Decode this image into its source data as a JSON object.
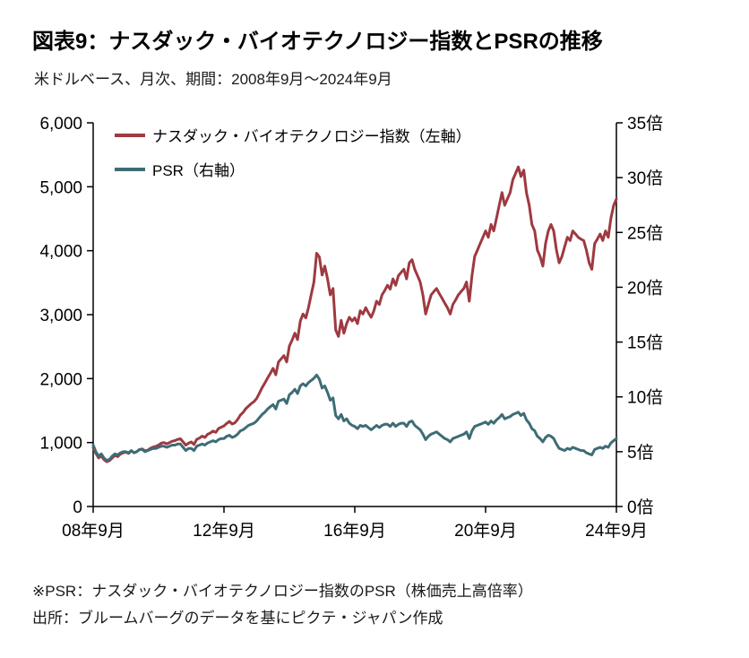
{
  "page": {
    "title": "図表9：ナスダック・バイオテクノロジー指数とPSRの推移",
    "subtitle": "米ドルベース、月次、期間：2008年9月～2024年9月",
    "footnotes": [
      "※PSR：ナスダック・バイオテクノロジー指数のPSR（株価売上高倍率）",
      "出所：ブルームバーグのデータを基にピクテ・ジャパン作成"
    ]
  },
  "chart_data": {
    "type": "line",
    "title": "図表9：ナスダック・バイオテクノロジー指数とPSRの推移",
    "subtitle": "米ドルベース、月次、期間：2008年9月～2024年9月",
    "x_axis": {
      "unit": "month",
      "range_note": "monthly, 2008-09 through 2024-09, 193 points",
      "ticks": [
        {
          "index": 0,
          "label": "08年9月"
        },
        {
          "index": 48,
          "label": "12年9月"
        },
        {
          "index": 96,
          "label": "16年9月"
        },
        {
          "index": 144,
          "label": "20年9月"
        },
        {
          "index": 192,
          "label": "24年9月"
        }
      ]
    },
    "left_axis": {
      "min": 0,
      "max": 6000,
      "tick_values": [
        0,
        1000,
        2000,
        3000,
        4000,
        5000,
        6000
      ],
      "tick_labels": [
        "0",
        "1,000",
        "2,000",
        "3,000",
        "4,000",
        "5,000",
        "6,000"
      ]
    },
    "right_axis": {
      "min": 0,
      "max": 35,
      "tick_values": [
        0,
        5,
        10,
        15,
        20,
        25,
        30,
        35
      ],
      "tick_labels": [
        "0倍",
        "5倍",
        "10倍",
        "15倍",
        "20倍",
        "25倍",
        "30倍",
        "35倍"
      ]
    },
    "grid": false,
    "legend_position": "top-left-inside",
    "series": [
      {
        "name": "ナスダック・バイオテクノロジー指数（左軸）",
        "axis": "left",
        "color": "#9E3A40",
        "values": [
          920,
          830,
          760,
          790,
          730,
          700,
          720,
          760,
          800,
          780,
          820,
          840,
          850,
          830,
          870,
          840,
          860,
          890,
          900,
          870,
          880,
          910,
          930,
          940,
          960,
          990,
          1000,
          980,
          1000,
          1020,
          1030,
          1050,
          1060,
          1010,
          960,
          990,
          1010,
          970,
          1050,
          1070,
          1100,
          1080,
          1130,
          1150,
          1180,
          1160,
          1220,
          1240,
          1260,
          1300,
          1330,
          1290,
          1310,
          1360,
          1430,
          1470,
          1530,
          1570,
          1610,
          1640,
          1690,
          1770,
          1860,
          1930,
          2010,
          2080,
          2160,
          2060,
          2260,
          2310,
          2360,
          2260,
          2510,
          2600,
          2710,
          2610,
          2900,
          3010,
          2950,
          3110,
          3310,
          3510,
          3960,
          3900,
          3620,
          3760,
          3560,
          3310,
          3410,
          2760,
          2660,
          2910,
          2710,
          2860,
          2960,
          2900,
          2950,
          2860,
          3060,
          3010,
          3110,
          3030,
          2960,
          3060,
          3210,
          3160,
          3310,
          3380,
          3460,
          3400,
          3560,
          3460,
          3610,
          3660,
          3710,
          3560,
          3810,
          3860,
          3710,
          3610,
          3510,
          3310,
          3010,
          3160,
          3310,
          3360,
          3410,
          3330,
          3260,
          3180,
          3110,
          3010,
          3160,
          3230,
          3310,
          3360,
          3410,
          3510,
          3210,
          3610,
          3910,
          4010,
          4110,
          4210,
          4310,
          4210,
          4410,
          4310,
          4510,
          4710,
          4910,
          4710,
          4810,
          4910,
          5110,
          5210,
          5310,
          5160,
          5260,
          4910,
          4710,
          4410,
          4310,
          4010,
          3910,
          3760,
          4110,
          4310,
          4410,
          4310,
          4010,
          3810,
          3910,
          4060,
          4210,
          4160,
          4310,
          4260,
          4210,
          4180,
          4160,
          4010,
          3810,
          3710,
          4110,
          4180,
          4260,
          4160,
          4310,
          4210,
          4510,
          4710,
          4810
        ]
      },
      {
        "name": "PSR（右軸）",
        "axis": "right",
        "color": "#3E6C76",
        "values": [
          5.6,
          5.0,
          4.6,
          4.8,
          4.4,
          4.2,
          4.3,
          4.6,
          4.8,
          4.7,
          4.9,
          5.0,
          5.0,
          4.9,
          5.1,
          4.9,
          5.0,
          5.2,
          5.2,
          5.0,
          5.1,
          5.2,
          5.3,
          5.3,
          5.4,
          5.5,
          5.5,
          5.4,
          5.5,
          5.6,
          5.6,
          5.7,
          5.7,
          5.4,
          5.1,
          5.3,
          5.3,
          5.1,
          5.5,
          5.6,
          5.7,
          5.6,
          5.8,
          5.9,
          6.0,
          5.9,
          6.1,
          6.2,
          6.2,
          6.4,
          6.5,
          6.3,
          6.4,
          6.6,
          6.9,
          7.0,
          7.2,
          7.4,
          7.5,
          7.6,
          7.8,
          8.1,
          8.4,
          8.6,
          8.9,
          9.1,
          9.3,
          8.9,
          9.6,
          9.7,
          9.8,
          9.4,
          10.2,
          10.4,
          10.7,
          10.3,
          11.0,
          11.2,
          11.0,
          11.3,
          11.5,
          11.7,
          12.0,
          11.6,
          10.8,
          11.0,
          10.4,
          9.7,
          9.9,
          8.3,
          8.0,
          8.4,
          7.8,
          8.0,
          7.6,
          7.4,
          7.3,
          7.1,
          7.4,
          7.3,
          7.4,
          7.2,
          7.0,
          7.2,
          7.4,
          7.2,
          7.4,
          7.5,
          7.5,
          7.3,
          7.6,
          7.3,
          7.5,
          7.6,
          7.6,
          7.3,
          7.7,
          7.8,
          7.4,
          7.2,
          7.0,
          6.6,
          6.1,
          6.4,
          6.6,
          6.7,
          6.8,
          6.6,
          6.4,
          6.2,
          6.1,
          5.9,
          6.2,
          6.3,
          6.4,
          6.5,
          6.6,
          6.8,
          6.2,
          6.9,
          7.3,
          7.4,
          7.5,
          7.6,
          7.7,
          7.5,
          7.8,
          7.6,
          7.9,
          8.1,
          8.4,
          8.0,
          8.1,
          8.2,
          8.4,
          8.5,
          8.6,
          8.3,
          8.5,
          7.9,
          7.6,
          7.1,
          6.9,
          6.4,
          6.2,
          5.9,
          6.3,
          6.5,
          6.4,
          6.2,
          5.7,
          5.3,
          5.2,
          5.1,
          5.3,
          5.2,
          5.4,
          5.3,
          5.2,
          5.1,
          5.1,
          4.9,
          4.8,
          4.7,
          5.2,
          5.3,
          5.4,
          5.3,
          5.5,
          5.4,
          5.8,
          6.0,
          6.2
        ]
      }
    ]
  }
}
